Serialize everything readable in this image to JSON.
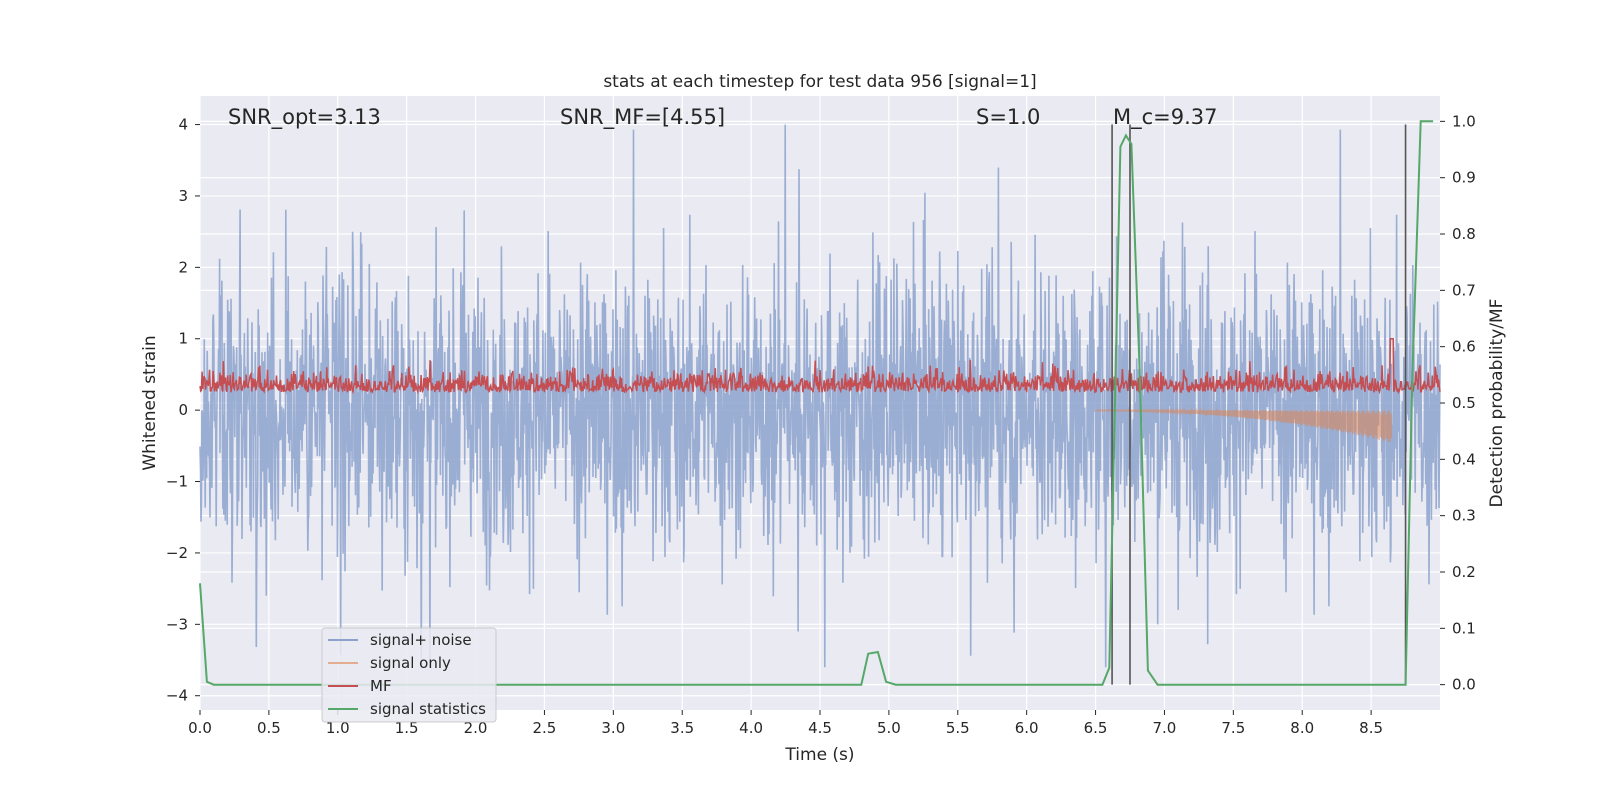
{
  "chart_data": {
    "type": "line",
    "title": "stats at each timestep for test data 956 [signal=1]",
    "xlabel": "Time (s)",
    "ylabel": "Whitened strain",
    "ylabel_right": "Detection probability/MF",
    "xlim": [
      0,
      9
    ],
    "ylim": [
      -4.2,
      4.4
    ],
    "ylim_right": [
      -0.045,
      1.045
    ],
    "x_ticks": [
      0.0,
      0.5,
      1.0,
      1.5,
      2.0,
      2.5,
      3.0,
      3.5,
      4.0,
      4.5,
      5.0,
      5.5,
      6.0,
      6.5,
      7.0,
      7.5,
      8.0,
      8.5
    ],
    "x_tick_labels": [
      "0.0",
      "0.5",
      "1.0",
      "1.5",
      "2.0",
      "2.5",
      "3.0",
      "3.5",
      "4.0",
      "4.5",
      "5.0",
      "5.5",
      "6.0",
      "6.5",
      "7.0",
      "7.5",
      "8.0",
      "8.5"
    ],
    "y_ticks": [
      -4,
      -3,
      -2,
      -1,
      0,
      1,
      2,
      3,
      4
    ],
    "y_tick_labels": [
      "−4",
      "−3",
      "−2",
      "−1",
      "0",
      "1",
      "2",
      "3",
      "4"
    ],
    "y_ticks_right": [
      0.0,
      0.1,
      0.2,
      0.3,
      0.4,
      0.5,
      0.6,
      0.7,
      0.8,
      0.9,
      1.0
    ],
    "y_tick_labels_right": [
      "0.0",
      "0.1",
      "0.2",
      "0.3",
      "0.4",
      "0.5",
      "0.6",
      "0.7",
      "0.8",
      "0.9",
      "1.0"
    ],
    "grid": true,
    "legend_position": "lower-left",
    "colors": {
      "signal_noise": "#8ca2cc",
      "signal_only": "#dd8452",
      "mf": "#c44e52",
      "statistics": "#55a868",
      "markers": "#555555",
      "background": "#eaeaf2"
    },
    "annotations": [
      {
        "text": "SNR_opt=3.13"
      },
      {
        "text": "SNR_MF=[4.55]"
      },
      {
        "text": "S=1.0"
      },
      {
        "text": "M_c=9.37"
      }
    ],
    "vertical_markers_s": [
      6.62,
      6.75,
      8.75
    ],
    "series": [
      {
        "name": "signal+ noise",
        "kind": "noisy-strain",
        "approx_range": [
          -3.6,
          4.0
        ]
      },
      {
        "name": "signal only",
        "kind": "chirp",
        "start_s": 6.5,
        "end_s": 8.65,
        "peak_amplitude": -0.45
      },
      {
        "name": "MF",
        "kind": "matched-filter",
        "typical_range": [
          0.0,
          0.8
        ],
        "peak": 1.0,
        "peak_s": 8.65
      },
      {
        "name": "signal statistics",
        "kind": "detection-probability",
        "x": [
          0.0,
          0.05,
          0.1,
          4.8,
          4.85,
          4.92,
          4.98,
          5.05,
          6.55,
          6.6,
          6.68,
          6.72,
          6.76,
          6.82,
          6.88,
          6.95,
          8.75,
          8.8,
          8.86,
          8.95
        ],
        "y": [
          0.18,
          0.005,
          0.0,
          0.0,
          0.055,
          0.058,
          0.005,
          0.0,
          0.0,
          0.03,
          0.955,
          0.975,
          0.96,
          0.56,
          0.025,
          0.0,
          0.0,
          0.55,
          1.0,
          1.0
        ]
      }
    ]
  }
}
